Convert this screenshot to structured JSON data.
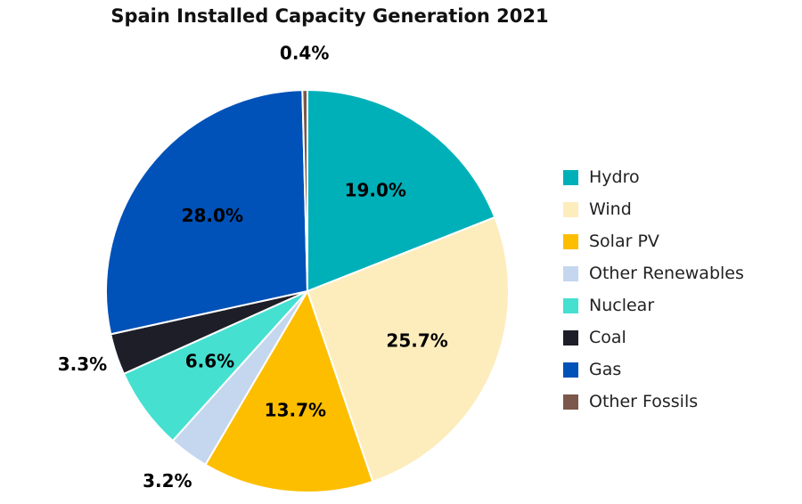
{
  "chart_data": {
    "type": "pie",
    "title": "Spain Installed Capacity Generation 2021",
    "legend_position": "right",
    "slices": [
      {
        "name": "Hydro",
        "value": 19.0,
        "label": "19.0%",
        "color": "#00b0b9"
      },
      {
        "name": "Wind",
        "value": 25.7,
        "label": "25.7%",
        "color": "#fdedbd"
      },
      {
        "name": "Solar PV",
        "value": 13.7,
        "label": "13.7%",
        "color": "#fdbe00"
      },
      {
        "name": "Other Renewables",
        "value": 3.2,
        "label": "3.2%",
        "color": "#c5d7ee"
      },
      {
        "name": "Nuclear",
        "value": 6.6,
        "label": "6.6%",
        "color": "#46e0d1"
      },
      {
        "name": "Coal",
        "value": 3.3,
        "label": "3.3%",
        "color": "#1e1e28"
      },
      {
        "name": "Gas",
        "value": 28.0,
        "label": "28.0%",
        "color": "#0051b8"
      },
      {
        "name": "Other Fossils",
        "value": 0.4,
        "label": "0.4%",
        "color": "#7b584b"
      }
    ]
  }
}
